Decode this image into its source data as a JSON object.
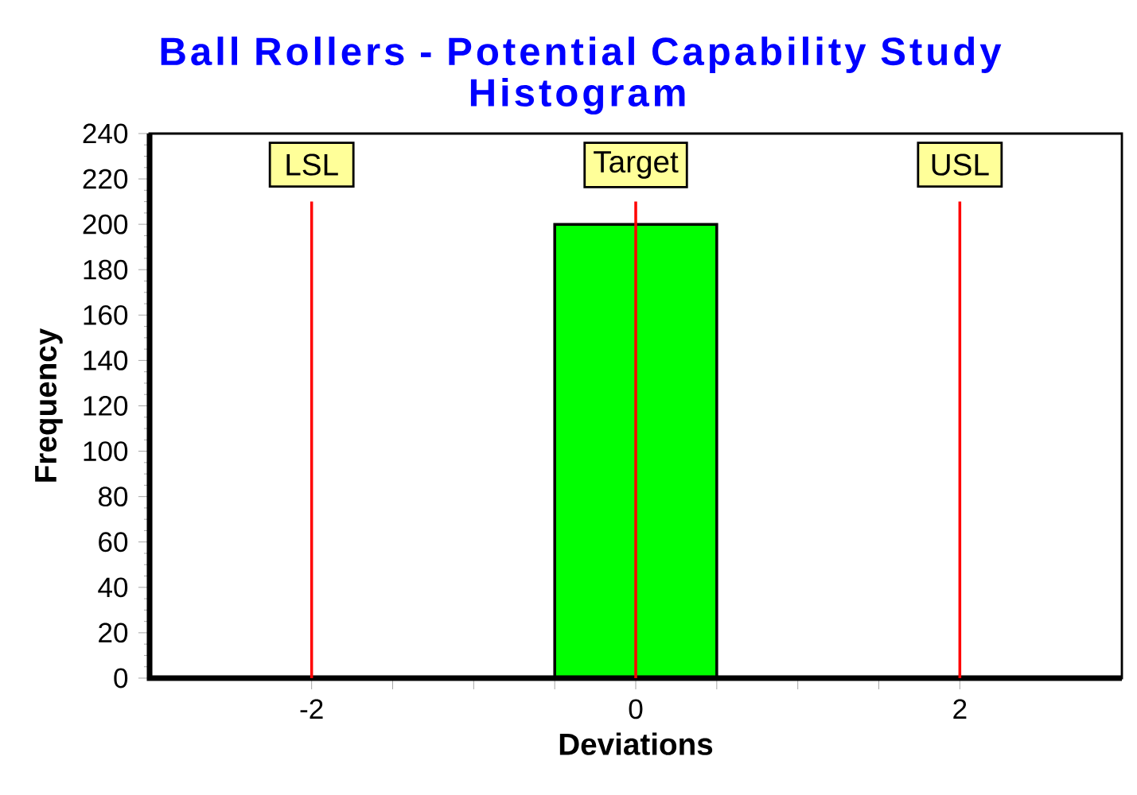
{
  "chart_data": {
    "type": "histogram",
    "title": "Ball Rollers - Potential Capability Study",
    "subtitle": "Histogram",
    "xlabel": "Deviations",
    "ylabel": "Frequency",
    "bins": [
      -0.5,
      0.5
    ],
    "values": [
      200
    ],
    "color": "#00ff00",
    "xlim": [
      -3,
      3
    ],
    "xticks": [
      -2,
      {
        "value": -1.5,
        "label": null
      },
      {
        "value": -1,
        "label": null
      },
      {
        "value": -0.5,
        "label": null
      },
      0,
      {
        "value": 0.5,
        "label": null
      },
      {
        "value": 1,
        "label": null
      },
      {
        "value": 1.5,
        "label": null
      },
      2
    ],
    "ylim": [
      0,
      240
    ],
    "yticks": [
      0,
      20,
      40,
      60,
      80,
      100,
      120,
      140,
      160,
      180,
      200,
      220,
      240
    ],
    "ref_lines": [
      {
        "axis": "x",
        "value": -2,
        "label": "LSL",
        "color": "#ff0000"
      },
      {
        "axis": "x",
        "value": 0,
        "label": "Target",
        "color": "#ff0000"
      },
      {
        "axis": "x",
        "value": 2,
        "label": "USL",
        "color": "#ff0000"
      }
    ],
    "grid": false
  }
}
